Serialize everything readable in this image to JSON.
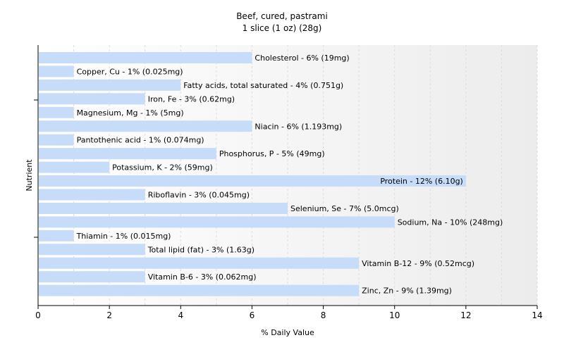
{
  "chart_data": {
    "type": "bar",
    "orientation": "horizontal",
    "title": "Beef, cured, pastrami",
    "subtitle": "1 slice (1 oz) (28g)",
    "xlabel": "% Daily Value",
    "ylabel": "Nutrient",
    "xlim": [
      0,
      14
    ],
    "xticks": [
      0,
      2,
      4,
      6,
      8,
      10,
      12,
      14
    ],
    "grid": true,
    "bar_color": "#c6dcf8",
    "categories": [
      "Cholesterol",
      "Copper, Cu",
      "Fatty acids, total saturated",
      "Iron, Fe",
      "Magnesium, Mg",
      "Niacin",
      "Pantothenic acid",
      "Phosphorus, P",
      "Potassium, K",
      "Protein",
      "Riboflavin",
      "Selenium, Se",
      "Sodium, Na",
      "Thiamin",
      "Total lipid (fat)",
      "Vitamin B-12",
      "Vitamin B-6",
      "Zinc, Zn"
    ],
    "values": [
      6,
      1,
      4,
      3,
      1,
      6,
      1,
      5,
      2,
      12,
      3,
      7,
      10,
      1,
      3,
      9,
      3,
      9
    ],
    "labels": [
      "Cholesterol - 6% (19mg)",
      "Copper, Cu - 1% (0.025mg)",
      "Fatty acids, total saturated - 4% (0.751g)",
      "Iron, Fe - 3% (0.62mg)",
      "Magnesium, Mg - 1% (5mg)",
      "Niacin - 6% (1.193mg)",
      "Pantothenic acid - 1% (0.074mg)",
      "Phosphorus, P - 5% (49mg)",
      "Potassium, K - 2% (59mg)",
      "Protein - 12% (6.10g)",
      "Riboflavin - 3% (0.045mg)",
      "Selenium, Se - 7% (5.0mcg)",
      "Sodium, Na - 10% (248mg)",
      "Thiamin - 1% (0.015mg)",
      "Total lipid (fat) - 3% (1.63g)",
      "Vitamin B-12 - 9% (0.52mcg)",
      "Vitamin B-6 - 3% (0.062mg)",
      "Zinc, Zn - 9% (1.39mg)"
    ]
  }
}
